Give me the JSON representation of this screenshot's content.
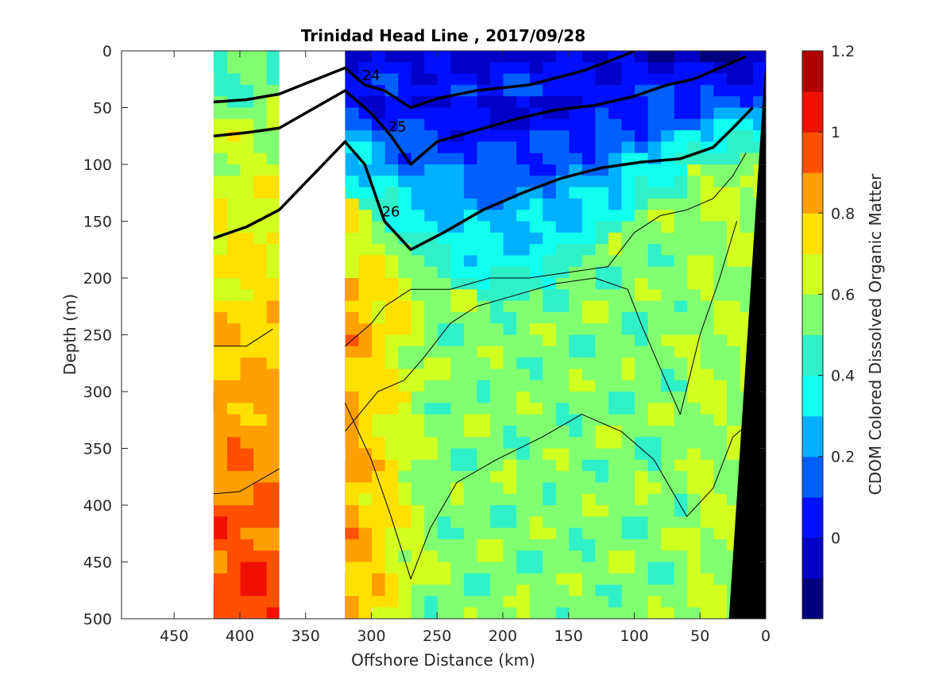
{
  "chart_data": {
    "type": "heatmap",
    "title": "Trinidad Head Line , 2017/09/28",
    "xlabel": "Offshore Distance (km)",
    "ylabel": "Depth (m)",
    "colorbar_label": "CDOM Colored Dissolved Organic Matter",
    "xlim": [
      490,
      0
    ],
    "ylim": [
      500,
      0
    ],
    "x_reversed": true,
    "y_reversed": true,
    "x_ticks": [
      450,
      400,
      350,
      300,
      250,
      200,
      150,
      100,
      50,
      0
    ],
    "y_ticks": [
      0,
      50,
      100,
      150,
      200,
      250,
      300,
      350,
      400,
      450,
      500
    ],
    "colorbar": {
      "range": [
        -0.2,
        1.2
      ],
      "ticks": [
        0,
        0.2,
        0.4,
        0.6,
        0.8,
        1,
        1.2
      ],
      "levels": 14,
      "colors": [
        "#00007f",
        "#0000c8",
        "#0010ff",
        "#0060ff",
        "#00b0ff",
        "#10ffef",
        "#30f0c8",
        "#80ff70",
        "#d0ff20",
        "#ffe000",
        "#ffa000",
        "#ff5000",
        "#f01000",
        "#b00000"
      ]
    },
    "data_gaps_km": [
      [
        490,
        420
      ],
      [
        370,
        320
      ]
    ],
    "seafloor_color": "#000000",
    "seafloor_polygon": [
      [
        0,
        0
      ],
      [
        0,
        500
      ],
      [
        28,
        500
      ],
      [
        0,
        5
      ]
    ],
    "contour_lines": [
      {
        "label": "24",
        "bold": true,
        "points": [
          [
            420,
            45
          ],
          [
            395,
            43
          ],
          [
            370,
            38
          ],
          [
            320,
            15
          ],
          [
            305,
            30
          ],
          [
            290,
            35
          ],
          [
            270,
            50
          ],
          [
            250,
            42
          ],
          [
            220,
            35
          ],
          [
            180,
            30
          ],
          [
            140,
            18
          ],
          [
            110,
            5
          ],
          [
            100,
            0
          ]
        ]
      },
      {
        "label": "25",
        "bold": true,
        "points": [
          [
            420,
            75
          ],
          [
            395,
            72
          ],
          [
            370,
            68
          ],
          [
            320,
            35
          ],
          [
            300,
            55
          ],
          [
            285,
            75
          ],
          [
            270,
            100
          ],
          [
            250,
            80
          ],
          [
            220,
            70
          ],
          [
            190,
            60
          ],
          [
            160,
            52
          ],
          [
            130,
            48
          ],
          [
            100,
            40
          ],
          [
            75,
            30
          ],
          [
            55,
            25
          ],
          [
            35,
            15
          ],
          [
            15,
            5
          ]
        ]
      },
      {
        "label": "26",
        "bold": true,
        "points": [
          [
            420,
            165
          ],
          [
            395,
            155
          ],
          [
            370,
            140
          ],
          [
            320,
            80
          ],
          [
            305,
            100
          ],
          [
            290,
            150
          ],
          [
            270,
            175
          ],
          [
            245,
            160
          ],
          [
            215,
            140
          ],
          [
            185,
            125
          ],
          [
            155,
            112
          ],
          [
            125,
            103
          ],
          [
            95,
            98
          ],
          [
            65,
            95
          ],
          [
            40,
            85
          ],
          [
            25,
            68
          ],
          [
            10,
            50
          ]
        ]
      },
      {
        "label": "",
        "bold": false,
        "points": [
          [
            420,
            260
          ],
          [
            395,
            260
          ],
          [
            375,
            245
          ]
        ]
      },
      {
        "label": "",
        "bold": false,
        "points": [
          [
            420,
            390
          ],
          [
            400,
            388
          ],
          [
            370,
            368
          ]
        ]
      },
      {
        "label": "",
        "bold": false,
        "points": [
          [
            320,
            260
          ],
          [
            300,
            240
          ],
          [
            290,
            225
          ],
          [
            270,
            210
          ],
          [
            240,
            210
          ],
          [
            210,
            200
          ],
          [
            180,
            200
          ],
          [
            150,
            195
          ],
          [
            120,
            190
          ],
          [
            100,
            160
          ],
          [
            80,
            145
          ],
          [
            60,
            140
          ],
          [
            40,
            130
          ],
          [
            25,
            110
          ],
          [
            15,
            90
          ]
        ]
      },
      {
        "label": "",
        "bold": false,
        "points": [
          [
            320,
            335
          ],
          [
            295,
            300
          ],
          [
            275,
            290
          ],
          [
            260,
            270
          ],
          [
            240,
            240
          ],
          [
            220,
            225
          ],
          [
            190,
            215
          ],
          [
            160,
            205
          ],
          [
            130,
            200
          ],
          [
            105,
            210
          ],
          [
            95,
            240
          ],
          [
            80,
            280
          ],
          [
            65,
            320
          ],
          [
            50,
            250
          ],
          [
            35,
            200
          ],
          [
            22,
            150
          ]
        ]
      },
      {
        "label": "",
        "bold": false,
        "points": [
          [
            320,
            310
          ],
          [
            300,
            360
          ],
          [
            285,
            410
          ],
          [
            270,
            465
          ],
          [
            255,
            420
          ],
          [
            235,
            380
          ],
          [
            205,
            360
          ],
          [
            170,
            340
          ],
          [
            140,
            320
          ],
          [
            110,
            335
          ],
          [
            85,
            360
          ],
          [
            60,
            410
          ],
          [
            40,
            385
          ],
          [
            25,
            340
          ],
          [
            15,
            330
          ]
        ]
      }
    ]
  }
}
